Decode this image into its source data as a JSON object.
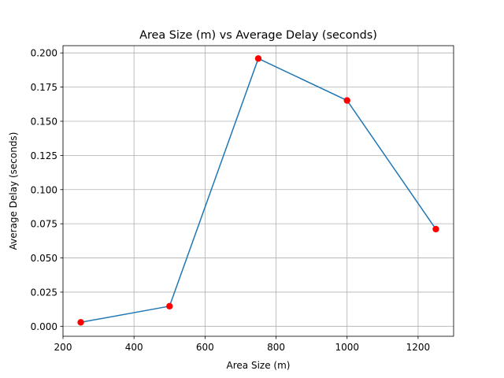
{
  "chart_data": {
    "type": "line",
    "title": "Area Size (m) vs Average Delay (seconds)",
    "xlabel": "Area Size (m)",
    "ylabel": "Average Delay (seconds)",
    "xlim": [
      200,
      1300
    ],
    "ylim": [
      -0.0073,
      0.2053
    ],
    "xticks": [
      200,
      400,
      600,
      800,
      1000,
      1200
    ],
    "xtick_labels": [
      "200",
      "400",
      "600",
      "800",
      "1000",
      "1200"
    ],
    "yticks": [
      0.0,
      0.025,
      0.05,
      0.075,
      0.1,
      0.125,
      0.15,
      0.175,
      0.2
    ],
    "ytick_labels": [
      "0.000",
      "0.025",
      "0.050",
      "0.075",
      "0.100",
      "0.125",
      "0.150",
      "0.175",
      "0.200"
    ],
    "grid": true,
    "series": [
      {
        "name": "Average Delay",
        "x": [
          250,
          500,
          750,
          1000,
          1250
        ],
        "y": [
          0.0029,
          0.0147,
          0.1959,
          0.1652,
          0.0711
        ],
        "line_color": "#1f77b4",
        "marker_color": "#ff0000"
      }
    ]
  }
}
